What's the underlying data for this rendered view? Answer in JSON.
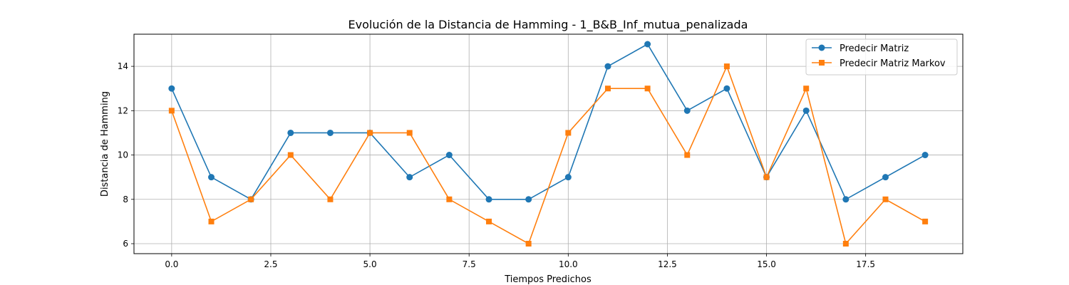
{
  "chart_data": {
    "type": "line",
    "title": "Evolución de la Distancia de Hamming - 1_B&B_Inf_mutua_penalizada",
    "xlabel": "Tiempos Predichos",
    "ylabel": "Distancia de Hamming",
    "x": [
      0,
      1,
      2,
      3,
      4,
      5,
      6,
      7,
      8,
      9,
      10,
      11,
      12,
      13,
      14,
      15,
      16,
      17,
      18,
      19
    ],
    "xlim": [
      -0.95,
      19.95
    ],
    "ylim": [
      5.55,
      15.45
    ],
    "xticks": [
      0,
      2.5,
      5,
      7.5,
      10,
      12.5,
      15,
      17.5
    ],
    "xtick_labels": [
      "0.0",
      "2.5",
      "5.0",
      "7.5",
      "10.0",
      "12.5",
      "15.0",
      "17.5"
    ],
    "yticks": [
      6,
      8,
      10,
      12,
      14
    ],
    "ytick_labels": [
      "6",
      "8",
      "10",
      "12",
      "14"
    ],
    "grid": true,
    "legend_position": "top-right",
    "series": [
      {
        "name": "Predecir Matriz",
        "marker": "circle",
        "color": "#1f77b4",
        "values": [
          13,
          9,
          8,
          11,
          11,
          11,
          9,
          10,
          8,
          8,
          9,
          14,
          15,
          12,
          13,
          9,
          12,
          8,
          9,
          10
        ]
      },
      {
        "name": "Predecir Matriz Markov",
        "marker": "square",
        "color": "#ff7f0e",
        "values": [
          12,
          7,
          8,
          10,
          8,
          11,
          11,
          8,
          7,
          6,
          11,
          13,
          13,
          10,
          14,
          9,
          13,
          6,
          8,
          7
        ]
      }
    ]
  }
}
